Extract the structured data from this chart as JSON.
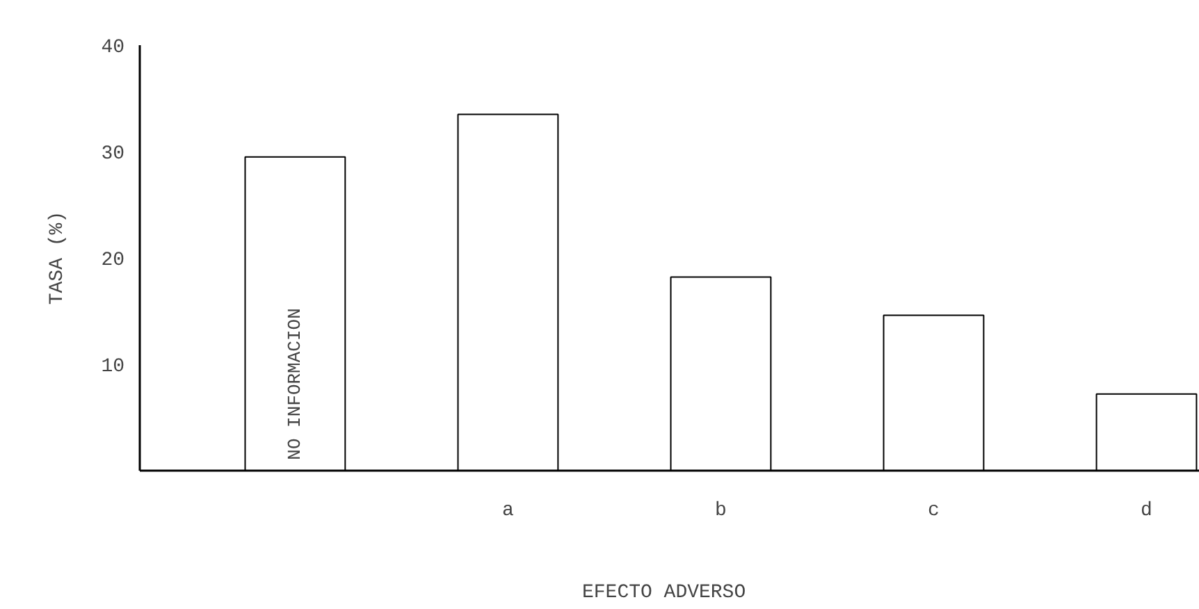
{
  "chart_data": {
    "type": "bar",
    "xlabel": "EFECTO  ADVERSO",
    "ylabel": "TASA (%)",
    "categories": [
      null,
      "a",
      "b",
      "c",
      "d"
    ],
    "values": [
      29.5,
      33.5,
      18.2,
      14.6,
      7.2
    ],
    "color": "#ffffff",
    "ylim": [
      0,
      40
    ],
    "yticks": [
      10,
      20,
      30,
      40
    ],
    "grid": false,
    "annotations": [
      "NO INFORMACION"
    ]
  }
}
